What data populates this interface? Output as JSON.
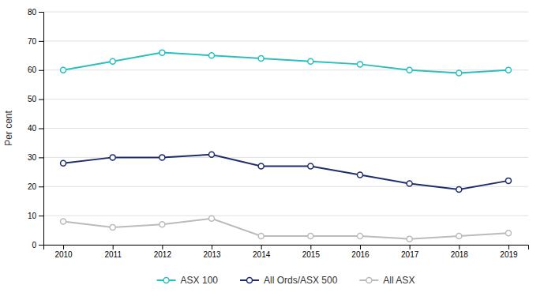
{
  "chart_data": {
    "type": "line",
    "ylabel": "Per cent",
    "x": [
      2010,
      2011,
      2012,
      2013,
      2014,
      2015,
      2016,
      2017,
      2018,
      2019
    ],
    "series": [
      {
        "name": "ASX 100",
        "color": "#2BBFBF",
        "values": [
          60,
          63,
          66,
          65,
          64,
          63,
          62,
          60,
          59,
          60
        ]
      },
      {
        "name": "All Ords/ASX 500",
        "color": "#1F2D6E",
        "values": [
          28,
          30,
          30,
          31,
          27,
          27,
          24,
          21,
          19,
          22
        ]
      },
      {
        "name": "All ASX",
        "color": "#BBBBBB",
        "values": [
          8,
          6,
          7,
          9,
          3,
          3,
          3,
          2,
          3,
          4
        ]
      }
    ],
    "xlim": [
      2009.6,
      2019.4
    ],
    "xticks": [
      2010,
      2011,
      2012,
      2013,
      2014,
      2015,
      2016,
      2017,
      2018,
      2019
    ],
    "ylim": [
      0,
      80
    ],
    "yticks": [
      0,
      10,
      20,
      30,
      40,
      50,
      60,
      70,
      80
    ],
    "grid": true,
    "legend": "bottom",
    "marker": "circle"
  }
}
